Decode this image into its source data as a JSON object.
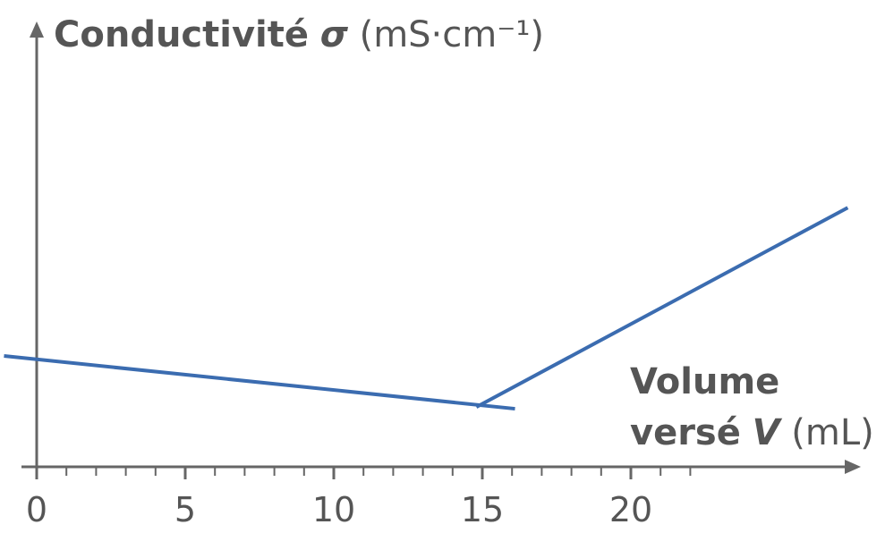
{
  "chart_data": {
    "type": "line",
    "ylabel_text": "Conductivité",
    "ylabel_symbol": "σ",
    "ylabel_unit": "(mS·cm⁻¹)",
    "xlabel_line1": "Volume",
    "xlabel_text": "versé",
    "xlabel_symbol": "V",
    "xlabel_unit": "(mL)",
    "xlim": [
      0,
      27.5
    ],
    "ylim": [
      0,
      10
    ],
    "xticks": [
      0,
      5,
      10,
      15,
      20
    ],
    "xminorticks": [
      1,
      2,
      3,
      4,
      6,
      7,
      8,
      9,
      11,
      12,
      13,
      14,
      16,
      17,
      18,
      19,
      21,
      22
    ],
    "series": [
      {
        "color": "#3b6cb0",
        "x": [
          -1.1,
          16.1
        ],
        "values": [
          2.52,
          1.32
        ]
      },
      {
        "color": "#3b6cb0",
        "x": [
          14.8,
          27.3
        ],
        "values": [
          1.36,
          5.89
        ]
      }
    ]
  }
}
